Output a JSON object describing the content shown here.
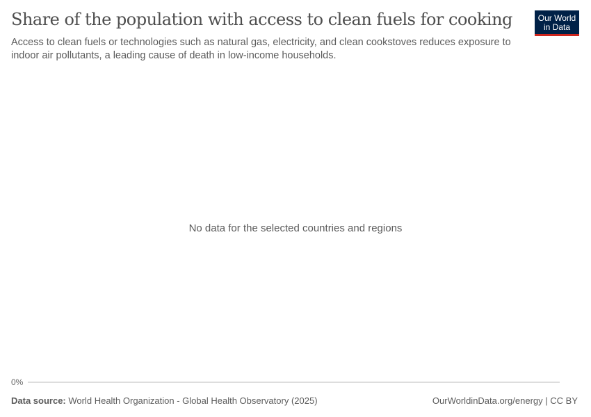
{
  "header": {
    "title": "Share of the population with access to clean fuels for cooking",
    "subtitle": "Access to clean fuels or technologies such as natural gas, electricity, and clean cookstoves reduces exposure to indoor air pollutants, a leading cause of death in low-income households.",
    "logo_text": "Our World in Data"
  },
  "chart_data": {
    "type": "line",
    "title": "Share of the population with access to clean fuels for cooking",
    "y_ticks": [
      "0%"
    ],
    "series": [],
    "message": "No data for the selected countries and regions",
    "grid": false
  },
  "footer": {
    "source_label": "Data source:",
    "source": "World Health Organization - Global Health Observatory (2025)",
    "link": "OurWorldinData.org/energy",
    "license": "CC BY"
  },
  "colors": {
    "logo_bg": "#002147",
    "logo_accent": "#ce261e"
  }
}
